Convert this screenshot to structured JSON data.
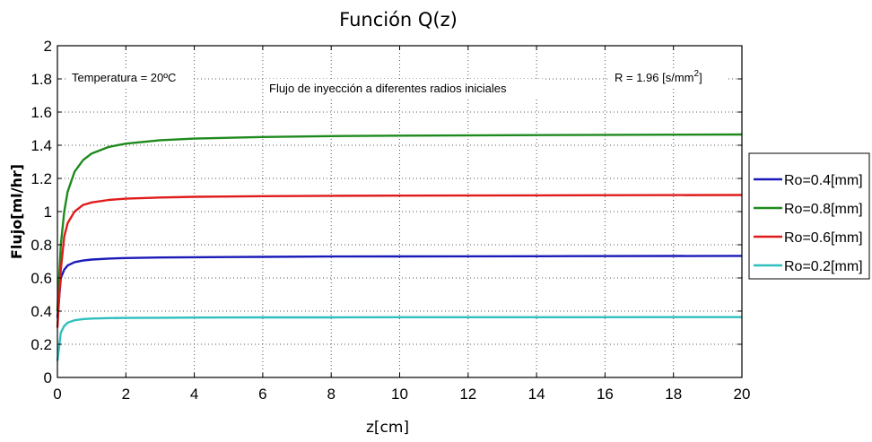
{
  "chart_data": {
    "type": "line",
    "title": "Función Q(z)",
    "xlabel": "z[cm]",
    "ylabel": "Flujo[ml/hr]",
    "xlim": [
      0,
      20
    ],
    "ylim": [
      0,
      2
    ],
    "xticks": [
      "0",
      "2",
      "4",
      "6",
      "8",
      "10",
      "12",
      "14",
      "16",
      "18",
      "20"
    ],
    "yticks": [
      "0",
      "0.2",
      "0.4",
      "0.6",
      "0.8",
      "1",
      "1.2",
      "1.4",
      "1.6",
      "1.8",
      "2"
    ],
    "grid": true,
    "legend_position": "outside-right",
    "annotations": {
      "temperature": "Temperatura = 20ºC",
      "subtitle": "Flujo de inyección a diferentes radios iniciales",
      "resistance_prefix": "R = 1.96 [s/mm",
      "resistance_exp": "2",
      "resistance_suffix": "]"
    },
    "x": [
      0,
      0.1,
      0.2,
      0.3,
      0.5,
      0.75,
      1,
      1.5,
      2,
      3,
      4,
      6,
      8,
      10,
      14,
      20
    ],
    "series": [
      {
        "name": "Ro=0.4[mm]",
        "color": "#1a1ab8",
        "values": [
          0.36,
          0.6,
          0.65,
          0.675,
          0.695,
          0.705,
          0.711,
          0.717,
          0.72,
          0.723,
          0.725,
          0.727,
          0.729,
          0.73,
          0.731,
          0.733
        ]
      },
      {
        "name": "Ro=0.8[mm]",
        "color": "#1e8a1e",
        "values": [
          0.4,
          0.8,
          1.0,
          1.12,
          1.24,
          1.31,
          1.35,
          1.39,
          1.41,
          1.43,
          1.44,
          1.45,
          1.455,
          1.458,
          1.461,
          1.465
        ]
      },
      {
        "name": "Ro=0.6[mm]",
        "color": "#e01b1b",
        "values": [
          0.3,
          0.65,
          0.85,
          0.93,
          1.0,
          1.04,
          1.055,
          1.07,
          1.078,
          1.085,
          1.089,
          1.093,
          1.095,
          1.096,
          1.098,
          1.1
        ]
      },
      {
        "name": "Ro=0.2[mm]",
        "color": "#2fbfbf",
        "values": [
          0.1,
          0.27,
          0.31,
          0.33,
          0.345,
          0.352,
          0.355,
          0.358,
          0.359,
          0.36,
          0.361,
          0.362,
          0.362,
          0.363,
          0.363,
          0.364
        ]
      }
    ]
  }
}
